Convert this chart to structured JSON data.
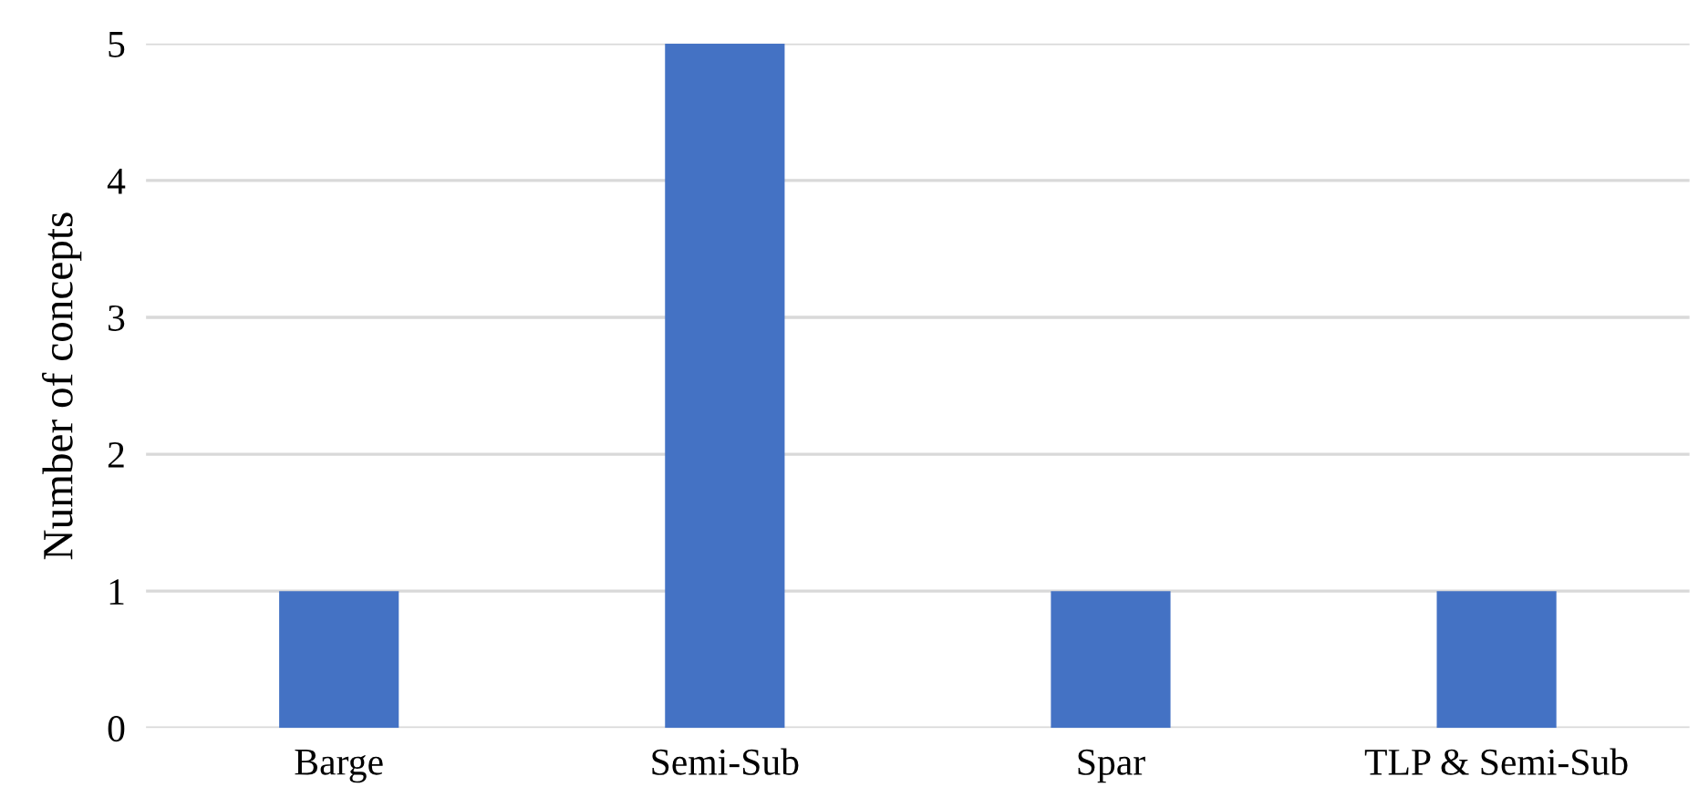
{
  "chart_data": {
    "type": "bar",
    "ylabel": "Number of concepts",
    "categories": [
      "Barge",
      "Semi-Sub",
      "Spar",
      "TLP & Semi-Sub"
    ],
    "values": [
      1,
      5,
      1,
      1
    ],
    "color": "#4472c4",
    "ylim": [
      0,
      5
    ],
    "yticks": [
      0,
      1,
      2,
      3,
      4,
      5
    ],
    "grid": "y"
  }
}
